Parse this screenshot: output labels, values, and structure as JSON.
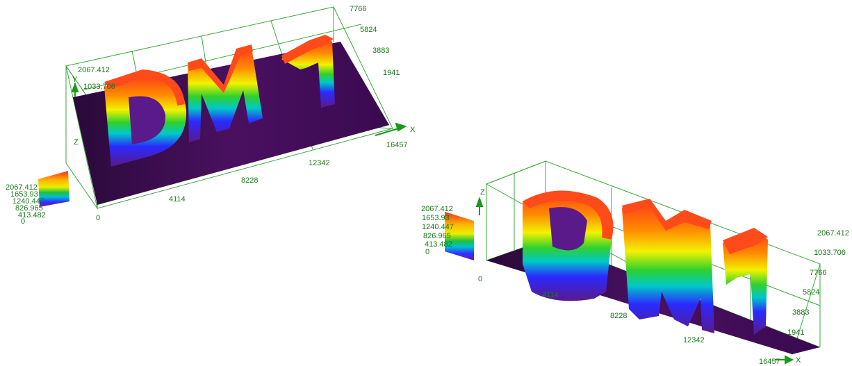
{
  "chart_data": [
    {
      "type": "surface-3d",
      "title": "",
      "axes": {
        "x": {
          "label": "X",
          "ticks": [
            "0",
            "4114",
            "8228",
            "12342",
            "16457"
          ]
        },
        "y": {
          "label": "Y",
          "ticks": [
            "1941",
            "3883",
            "5824",
            "7766"
          ]
        },
        "z": {
          "label": "Z",
          "ticks": [
            "1033.706",
            "2067.412"
          ]
        }
      },
      "colorbar": {
        "labels": [
          "2067.412",
          "1653.93",
          "1240.447",
          "826.965",
          "413.482",
          "0"
        ],
        "colors": [
          "#ff3b1a",
          "#ff9a00",
          "#f0f000",
          "#2ed12e",
          "#00c8c8",
          "#2a2aff",
          "#8a1fc4"
        ]
      },
      "surface_text": "DM1",
      "zlim": [
        0,
        2067.412
      ],
      "xlim": [
        0,
        16457
      ],
      "ylim": [
        0,
        7766
      ]
    },
    {
      "type": "surface-3d",
      "title": "",
      "axes": {
        "x": {
          "label": "X",
          "ticks": [
            "0",
            "4114",
            "8228",
            "12342",
            "16457"
          ]
        },
        "y": {
          "label": "",
          "ticks": [
            "1941",
            "3883",
            "5824",
            "7766"
          ]
        },
        "z": {
          "label": "Z",
          "ticks": [
            "1033.706",
            "2067.412"
          ]
        }
      },
      "colorbar": {
        "labels": [
          "2067.412",
          "1653.93",
          "1240.447",
          "826.965",
          "413.482",
          "0"
        ],
        "colors": [
          "#ff3b1a",
          "#ff9a00",
          "#f0f000",
          "#2ed12e",
          "#00c8c8",
          "#2a2aff",
          "#8a1fc4"
        ]
      },
      "surface_text": "DM1",
      "zlim": [
        0,
        2067.412
      ],
      "xlim": [
        0,
        16457
      ],
      "ylim": [
        0,
        7766
      ]
    }
  ]
}
